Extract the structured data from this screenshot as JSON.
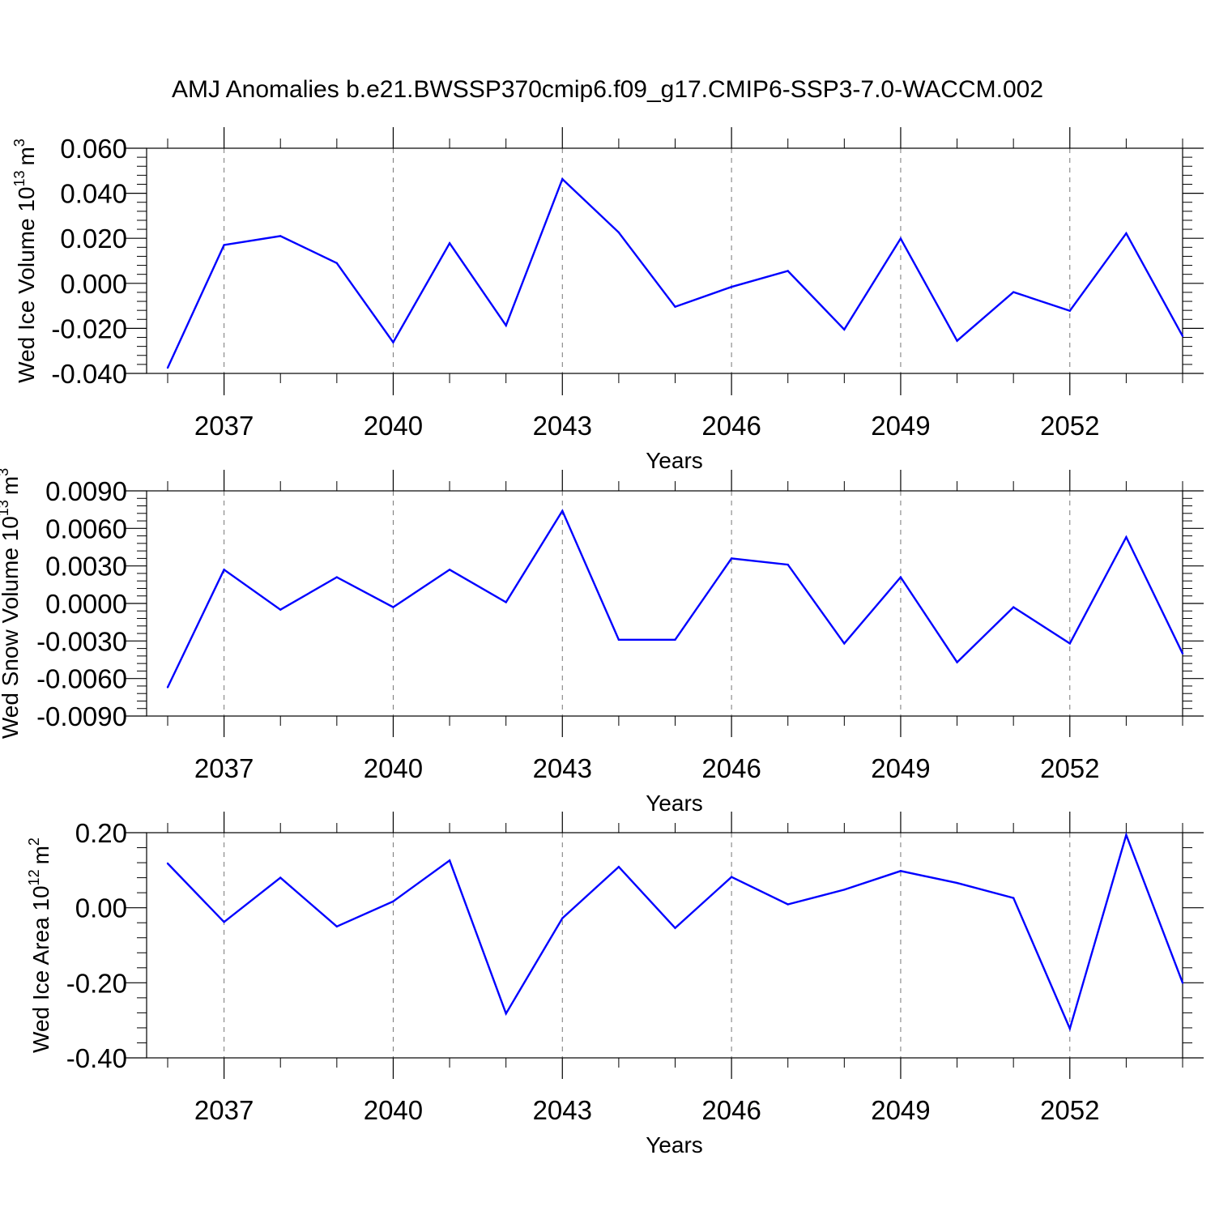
{
  "figure": {
    "title": "AMJ Anomalies b.e21.BWSSP370cmip6.f09_g17.CMIP6-SSP3-7.0-WACCM.002",
    "line_color": "#0000ff",
    "grid_color": "#777777"
  },
  "chart_data": [
    {
      "type": "line",
      "xlabel": "Years",
      "ylabel": "Wed Ice Volume 10",
      "ylabel_exp": "13",
      "ylabel_unit": "m",
      "ylabel_unit_exp": "3",
      "xlim": [
        2036,
        2054
      ],
      "ylim": [
        -0.04,
        0.06
      ],
      "x_ticks": [
        "2037",
        "2040",
        "2043",
        "2046",
        "2049",
        "2052"
      ],
      "y_ticks": [
        "0.060",
        "0.040",
        "0.020",
        "0.000",
        "-0.020",
        "-0.040"
      ],
      "grid": "vertical dashed at labeled years",
      "series": [
        {
          "x": [
            2036,
            2037,
            2038,
            2039,
            2040,
            2041,
            2042,
            2043,
            2044,
            2045,
            2046,
            2047,
            2048,
            2049,
            2050,
            2051,
            2052,
            2053,
            2054
          ],
          "values": [
            -0.0375,
            0.017,
            0.021,
            0.009,
            -0.0262,
            0.0178,
            -0.0187,
            0.0463,
            0.0226,
            -0.0104,
            -0.0016,
            0.0055,
            -0.0205,
            0.0199,
            -0.0255,
            -0.0039,
            -0.0122,
            0.0222,
            -0.0234
          ]
        }
      ]
    },
    {
      "type": "line",
      "xlabel": "Years",
      "ylabel": "Wed Snow Volume 10",
      "ylabel_exp": "13",
      "ylabel_unit": "m",
      "ylabel_unit_exp": "3",
      "xlim": [
        2036,
        2054
      ],
      "ylim": [
        -0.009,
        0.009
      ],
      "x_ticks": [
        "2037",
        "2040",
        "2043",
        "2046",
        "2049",
        "2052"
      ],
      "y_ticks": [
        "0.0090",
        "0.0060",
        "0.0030",
        "0.0000",
        "-0.0030",
        "-0.0060",
        "-0.0090"
      ],
      "grid": "vertical dashed at labeled years",
      "series": [
        {
          "x": [
            2036,
            2037,
            2038,
            2039,
            2040,
            2041,
            2042,
            2043,
            2044,
            2045,
            2046,
            2047,
            2048,
            2049,
            2050,
            2051,
            2052,
            2053,
            2054
          ],
          "values": [
            -0.0067,
            0.0027,
            -0.0005,
            0.0021,
            -0.0003,
            0.0027,
            0.0001,
            0.0074,
            -0.0029,
            -0.0029,
            0.0036,
            0.0031,
            -0.0032,
            0.0021,
            -0.0047,
            -0.0003,
            -0.0032,
            0.0053,
            -0.004
          ]
        }
      ]
    },
    {
      "type": "line",
      "xlabel": "Years",
      "ylabel": "Wed Ice Area 10",
      "ylabel_exp": "12",
      "ylabel_unit": "m",
      "ylabel_unit_exp": "2",
      "xlim": [
        2036,
        2054
      ],
      "ylim": [
        -0.4,
        0.2
      ],
      "x_ticks": [
        "2037",
        "2040",
        "2043",
        "2046",
        "2049",
        "2052"
      ],
      "y_ticks": [
        "0.20",
        "0.00",
        "-0.20",
        "-0.40"
      ],
      "grid": "vertical dashed at labeled years",
      "series": [
        {
          "x": [
            2036,
            2037,
            2038,
            2039,
            2040,
            2041,
            2042,
            2043,
            2044,
            2045,
            2046,
            2047,
            2048,
            2049,
            2050,
            2051,
            2052,
            2053,
            2054
          ],
          "values": [
            0.118,
            -0.038,
            0.08,
            -0.05,
            0.017,
            0.126,
            -0.282,
            -0.028,
            0.109,
            -0.054,
            0.082,
            0.009,
            0.048,
            0.098,
            0.066,
            0.026,
            -0.322,
            0.194,
            -0.2
          ]
        }
      ]
    }
  ]
}
